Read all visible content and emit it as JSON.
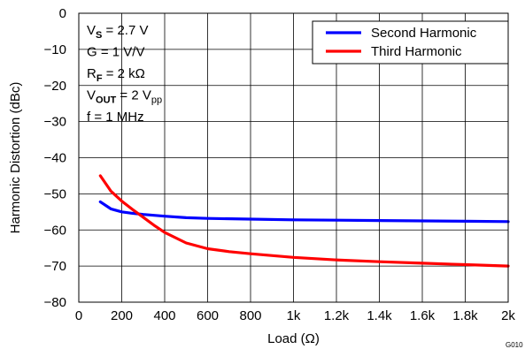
{
  "chart_data": {
    "type": "line",
    "title": "",
    "xlabel": "Load (Ω)",
    "ylabel": "Harmonic Distortion (dBc)",
    "xlim": [
      0,
      2000
    ],
    "ylim": [
      -80,
      0
    ],
    "x_ticks": [
      0,
      200,
      400,
      600,
      800,
      1000,
      1200,
      1400,
      1600,
      1800,
      2000
    ],
    "x_tick_labels": [
      "0",
      "200",
      "400",
      "600",
      "800",
      "1k",
      "1.2k",
      "1.4k",
      "1.6k",
      "1.8k",
      "2k"
    ],
    "y_ticks": [
      0,
      -10,
      -20,
      -30,
      -40,
      -50,
      -60,
      -70,
      -80
    ],
    "y_tick_labels": [
      "0",
      "−10",
      "−20",
      "−30",
      "−40",
      "−50",
      "−60",
      "−70",
      "−80"
    ],
    "grid": true,
    "legend_position": "top-right",
    "series": [
      {
        "name": "Second Harmonic",
        "color": "#0000ff",
        "x": [
          100,
          150,
          200,
          250,
          300,
          400,
          500,
          600,
          800,
          1000,
          1200,
          1400,
          1600,
          1800,
          2000
        ],
        "y": [
          -52.2,
          -54.2,
          -55.0,
          -55.4,
          -55.7,
          -56.2,
          -56.6,
          -56.8,
          -57.0,
          -57.2,
          -57.3,
          -57.4,
          -57.5,
          -57.6,
          -57.7
        ]
      },
      {
        "name": "Third Harmonic",
        "color": "#ff0000",
        "x": [
          100,
          150,
          200,
          250,
          300,
          350,
          400,
          500,
          600,
          700,
          800,
          1000,
          1200,
          1400,
          1600,
          1800,
          2000
        ],
        "y": [
          -45.0,
          -49.3,
          -52.0,
          -54.3,
          -56.5,
          -58.7,
          -60.7,
          -63.6,
          -65.2,
          -66.0,
          -66.6,
          -67.6,
          -68.3,
          -68.8,
          -69.2,
          -69.6,
          -70.0
        ]
      }
    ],
    "annotations": [
      {
        "parts": [
          {
            "t": "V"
          },
          {
            "t": "S",
            "sub": true,
            "bold": true
          },
          {
            "t": " = 2.7 V"
          }
        ]
      },
      {
        "parts": [
          {
            "t": "G = 1 V/V"
          }
        ]
      },
      {
        "parts": [
          {
            "t": "R"
          },
          {
            "t": "F",
            "sub": true,
            "bold": true
          },
          {
            "t": " = 2 kΩ"
          }
        ]
      },
      {
        "parts": [
          {
            "t": "V"
          },
          {
            "t": "OUT",
            "sub": true,
            "bold": true
          },
          {
            "t": " = 2 V"
          },
          {
            "t": "pp",
            "sub": true
          }
        ]
      },
      {
        "parts": [
          {
            "t": "f = 1 MHz"
          }
        ]
      }
    ],
    "figure_id": "G010"
  }
}
